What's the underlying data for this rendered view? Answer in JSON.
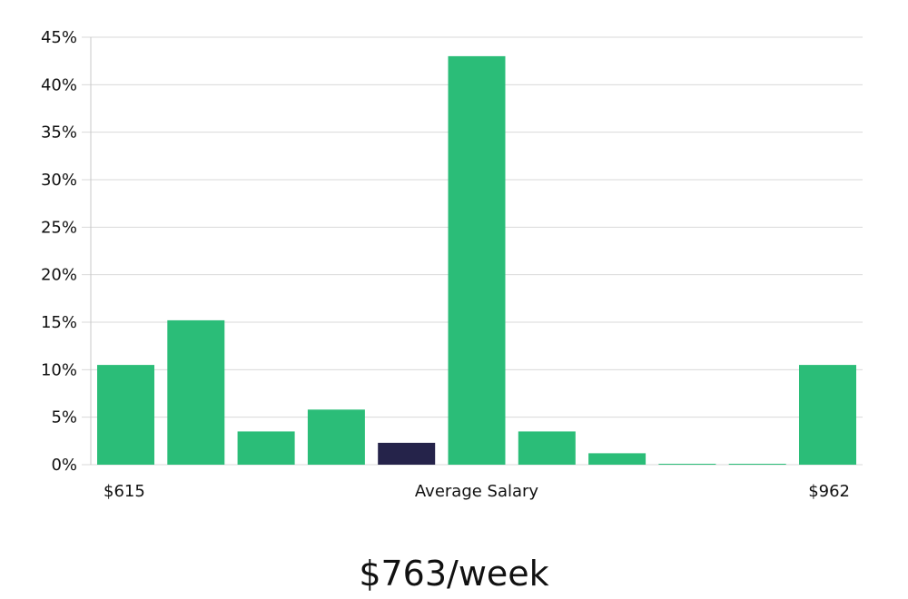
{
  "chart_data": {
    "type": "bar",
    "values": [
      10.5,
      15.2,
      3.5,
      5.8,
      2.3,
      43.0,
      3.5,
      1.2,
      0.05,
      0.05,
      10.5
    ],
    "highlight_index": 4,
    "y_ticks": [
      "0%",
      "5%",
      "10%",
      "15%",
      "20%",
      "25%",
      "30%",
      "35%",
      "40%",
      "45%"
    ],
    "ylim": [
      0,
      45
    ],
    "x_labels": {
      "left": "$615",
      "center": "Average Salary",
      "right": "$962"
    },
    "grid": true,
    "colors": {
      "bar": "#2bbd78",
      "highlight": "#25234a",
      "grid": "#d9d9d9",
      "axis": "#c8c8c8"
    }
  },
  "salary_headline": "$763/week"
}
